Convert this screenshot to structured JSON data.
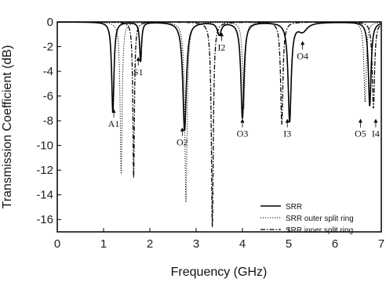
{
  "chart_data": {
    "type": "line",
    "title": "",
    "xlabel": "Frequency (GHz)",
    "ylabel": "Transmission Coefficient (dB)",
    "xlim": [
      0,
      7
    ],
    "ylim": [
      -17,
      0
    ],
    "xticks": [
      0,
      1,
      2,
      3,
      4,
      5,
      6,
      7
    ],
    "yticks": [
      0,
      -2,
      -4,
      -6,
      -8,
      -10,
      -12,
      -14,
      -16
    ],
    "grid": false,
    "legend_position": "bottom-right",
    "series": [
      {
        "name": "SRR",
        "style": "solid",
        "resonances": [
          {
            "f": 1.2,
            "depth": -7.3,
            "width": 0.03
          },
          {
            "f": 1.8,
            "depth": -3.2,
            "width": 0.025
          },
          {
            "f": 2.75,
            "depth": -8.8,
            "width": 0.045
          },
          {
            "f": 3.5,
            "depth": -1.0,
            "width": 0.05
          },
          {
            "f": 4.0,
            "depth": -7.8,
            "width": 0.04
          },
          {
            "f": 5.02,
            "depth": -8.0,
            "width": 0.04
          },
          {
            "f": 5.3,
            "depth": -0.7,
            "width": 0.12
          },
          {
            "f": 6.75,
            "depth": -6.8,
            "width": 0.035
          }
        ]
      },
      {
        "name": "SRR outer split ring",
        "style": "dotted",
        "resonances": [
          {
            "f": 1.38,
            "depth": -12.3,
            "width": 0.025
          },
          {
            "f": 2.78,
            "depth": -14.6,
            "width": 0.03
          },
          {
            "f": 4.03,
            "depth": -7.0,
            "width": 0.03
          },
          {
            "f": 6.65,
            "depth": -6.5,
            "width": 0.03
          }
        ]
      },
      {
        "name": "SRR inner split ring",
        "style": "dashdot",
        "resonances": [
          {
            "f": 1.65,
            "depth": -12.6,
            "width": 0.02
          },
          {
            "f": 3.35,
            "depth": -16.6,
            "width": 0.025
          },
          {
            "f": 4.85,
            "depth": -8.3,
            "width": 0.03
          },
          {
            "f": 6.83,
            "depth": -7.0,
            "width": 0.03
          }
        ]
      }
    ],
    "annotations": [
      {
        "text": "A1",
        "x": 1.22,
        "y": -8.5
      },
      {
        "text": "S1",
        "x": 1.75,
        "y": -4.3
      },
      {
        "text": "O2",
        "x": 2.7,
        "y": -10.0
      },
      {
        "text": "I2",
        "x": 3.55,
        "y": -2.3
      },
      {
        "text": "O3",
        "x": 4.0,
        "y": -9.3
      },
      {
        "text": "I3",
        "x": 4.97,
        "y": -9.3
      },
      {
        "text": "O4",
        "x": 5.3,
        "y": -3.0
      },
      {
        "text": "O5",
        "x": 6.55,
        "y": -9.3
      },
      {
        "text": "I4",
        "x": 6.88,
        "y": -9.3
      }
    ]
  }
}
